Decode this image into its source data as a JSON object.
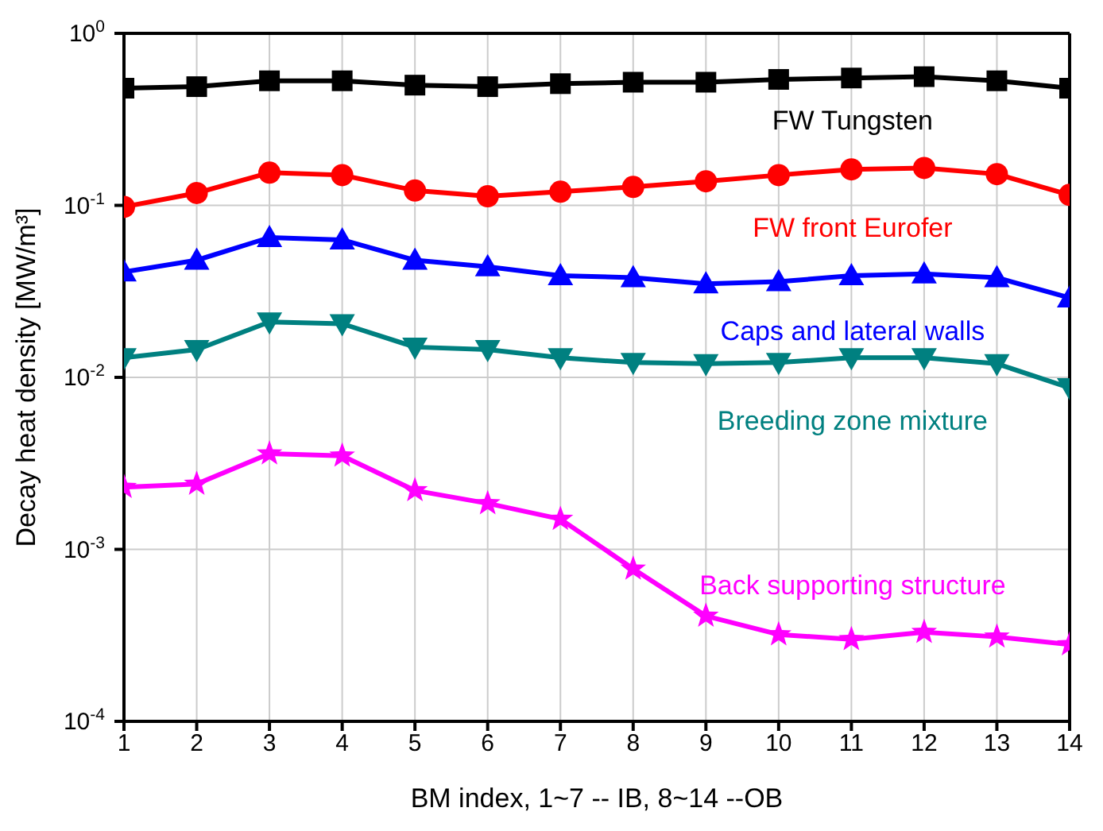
{
  "chart_data": {
    "type": "line",
    "xlabel": "BM index, 1~7 -- IB, 8~14 --OB",
    "ylabel": "Decay heat density [MW/m³]",
    "x": [
      1,
      2,
      3,
      4,
      5,
      6,
      7,
      8,
      9,
      10,
      11,
      12,
      13,
      14
    ],
    "xlim": [
      1,
      14
    ],
    "xticks": [
      1,
      2,
      3,
      4,
      5,
      6,
      7,
      8,
      9,
      10,
      11,
      12,
      13,
      14
    ],
    "ylim": [
      0.0001,
      1
    ],
    "log": "y",
    "yticks": [
      {
        "value": 0.0001,
        "label": "10$^{-4}$"
      },
      {
        "value": 0.001,
        "label": "10$^{-3}$"
      },
      {
        "value": 0.01,
        "label": "10$^{-2}$"
      },
      {
        "value": 0.1,
        "label": "10$^{-1}$"
      },
      {
        "value": 1,
        "label": "10$^{0}$"
      }
    ],
    "grid": true,
    "line_style": "solid",
    "series": [
      {
        "name": "FW Tungsten",
        "color": "#000000",
        "marker": "square",
        "values": [
          0.48,
          0.49,
          0.53,
          0.53,
          0.5,
          0.49,
          0.51,
          0.52,
          0.52,
          0.54,
          0.55,
          0.56,
          0.53,
          0.48
        ]
      },
      {
        "name": "FW front Eurofer",
        "color": "#ff0000",
        "marker": "circle",
        "values": [
          0.098,
          0.118,
          0.155,
          0.15,
          0.122,
          0.113,
          0.12,
          0.128,
          0.138,
          0.15,
          0.162,
          0.165,
          0.152,
          0.115
        ]
      },
      {
        "name": "Caps and lateral walls",
        "color": "#0000ff",
        "marker": "triangle",
        "values": [
          0.041,
          0.048,
          0.065,
          0.063,
          0.048,
          0.044,
          0.039,
          0.038,
          0.035,
          0.036,
          0.039,
          0.04,
          0.038,
          0.029
        ]
      },
      {
        "name": "Breeding zone mixture",
        "color": "#008080",
        "marker": "triangle-down",
        "values": [
          0.013,
          0.0145,
          0.021,
          0.0205,
          0.015,
          0.0145,
          0.013,
          0.0122,
          0.012,
          0.0122,
          0.013,
          0.013,
          0.012,
          0.0087
        ]
      },
      {
        "name": "Back supporting structure",
        "color": "#ff00ff",
        "marker": "star",
        "values": [
          0.0023,
          0.0024,
          0.0036,
          0.0035,
          0.0022,
          0.00185,
          0.0015,
          0.00077,
          0.00041,
          0.00032,
          0.0003,
          0.00033,
          0.00031,
          0.00028
        ]
      }
    ]
  }
}
